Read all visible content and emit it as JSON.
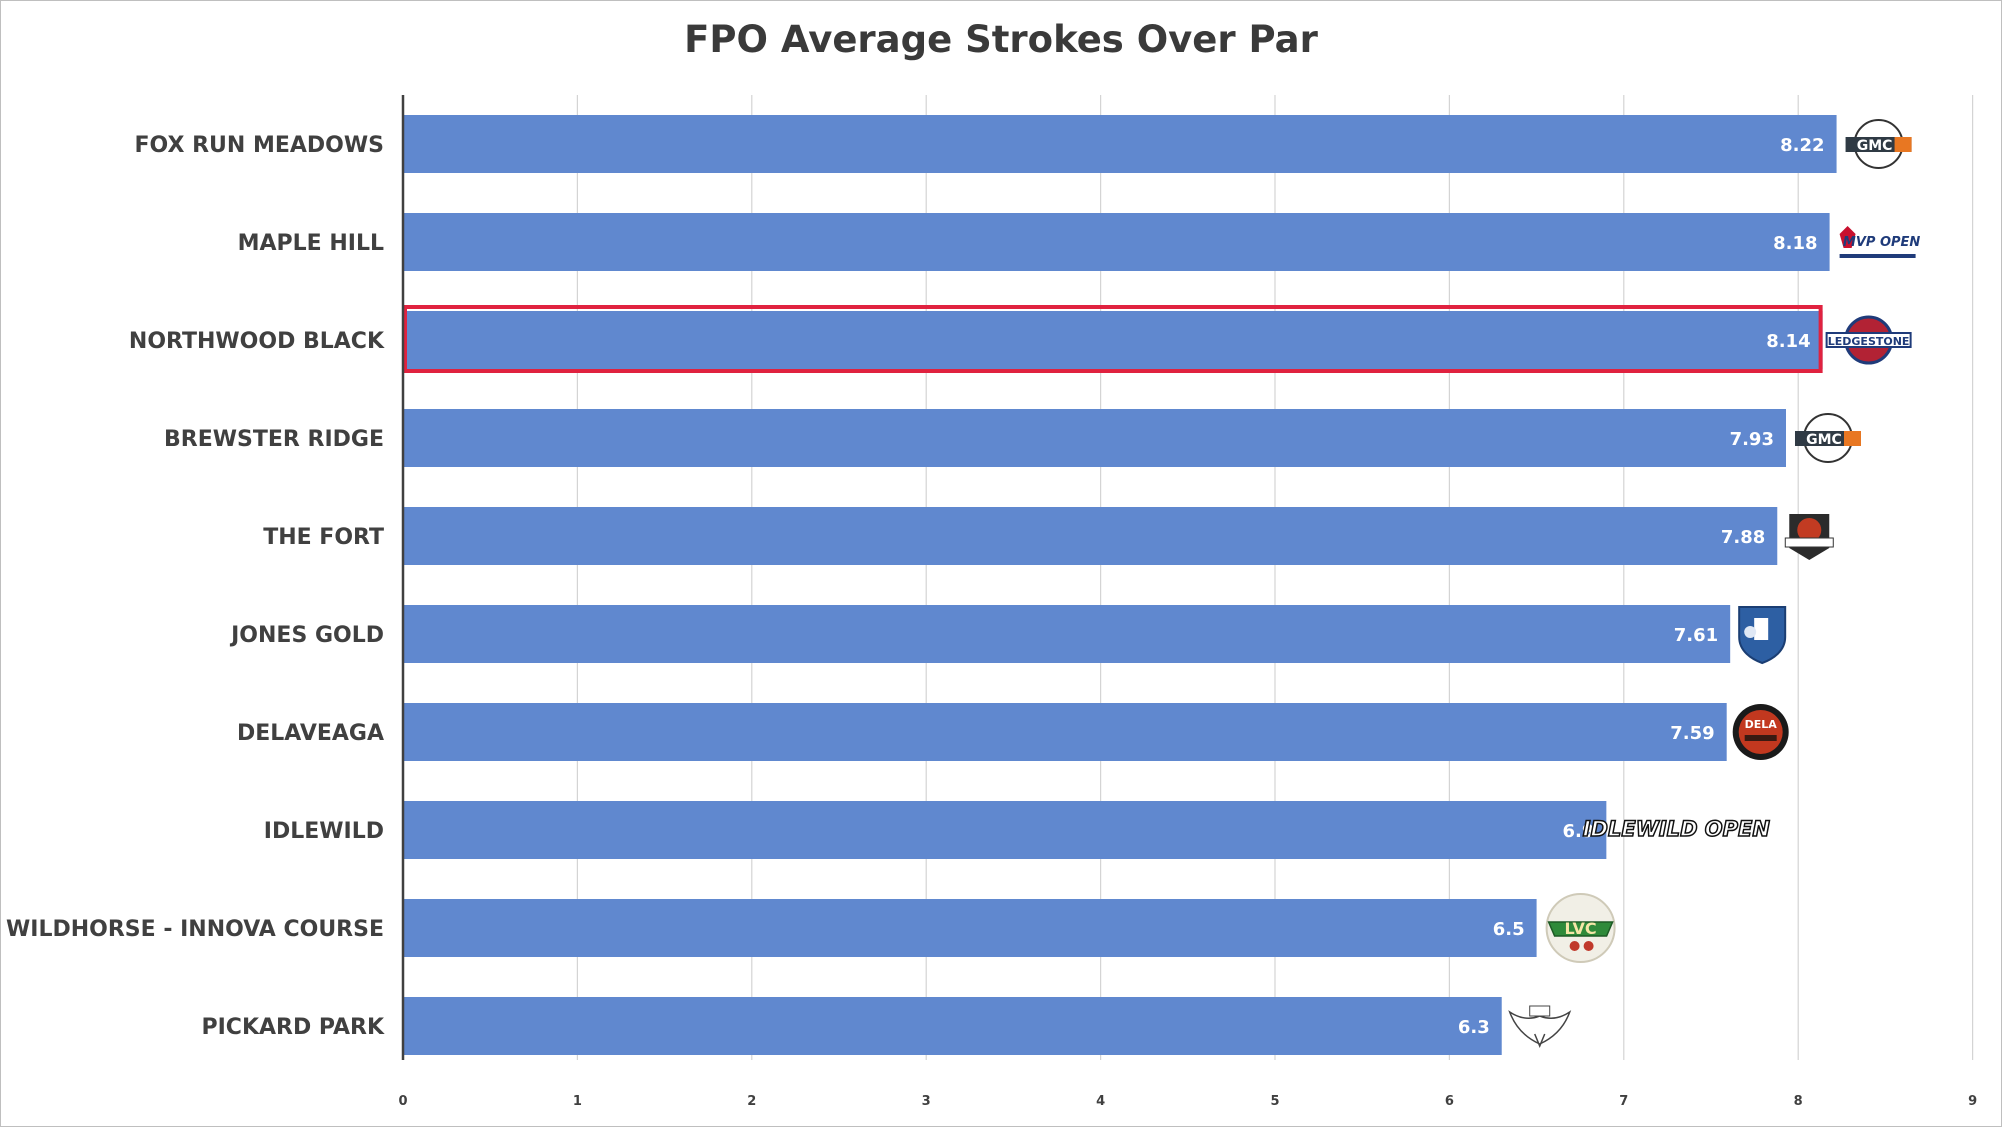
{
  "chart_data": {
    "type": "bar",
    "orientation": "horizontal",
    "title": "FPO Average Strokes Over Par",
    "xlabel": "",
    "ylabel": "",
    "categories": [
      "FOX RUN MEADOWS",
      "MAPLE HILL",
      "NORTHWOOD BLACK",
      "BREWSTER RIDGE",
      "THE FORT",
      "JONES GOLD",
      "DELAVEAGA",
      "IDLEWILD",
      "WILDHORSE - INNOVA COURSE",
      "PICKARD PARK"
    ],
    "values": [
      8.22,
      8.18,
      8.14,
      7.93,
      7.88,
      7.61,
      7.59,
      6.9,
      6.5,
      6.3
    ],
    "value_labels": [
      "8.22",
      "8.18",
      "8.14",
      "7.93",
      "7.88",
      "7.61",
      "7.59",
      "6.9",
      "6.5",
      "6.3"
    ],
    "xlim": [
      0,
      9
    ],
    "x_ticks": [
      "0",
      "1",
      "2",
      "3",
      "4",
      "5",
      "6",
      "7",
      "8",
      "9"
    ],
    "grid": "vertical",
    "highlighted_category": "NORTHWOOD BLACK",
    "bar_color": "#6088cf",
    "highlight_color": "#e0223f",
    "logos": [
      {
        "icon": "gmc-logo",
        "text": "GMC"
      },
      {
        "icon": "mvp-open-logo",
        "text": "MVP OPEN"
      },
      {
        "icon": "ledgestone-logo",
        "text": "LEDGESTONE"
      },
      {
        "icon": "gmc-logo",
        "text": "GMC"
      },
      {
        "icon": "world-championships-logo",
        "text": ""
      },
      {
        "icon": "shield-logo",
        "text": ""
      },
      {
        "icon": "dela-logo",
        "text": "DELA"
      },
      {
        "icon": "idlewild-open-logo",
        "text": "IDLEWILD OPEN"
      },
      {
        "icon": "lvc-logo",
        "text": "LVC"
      },
      {
        "icon": "dmc-eagle-logo",
        "text": ""
      }
    ]
  }
}
